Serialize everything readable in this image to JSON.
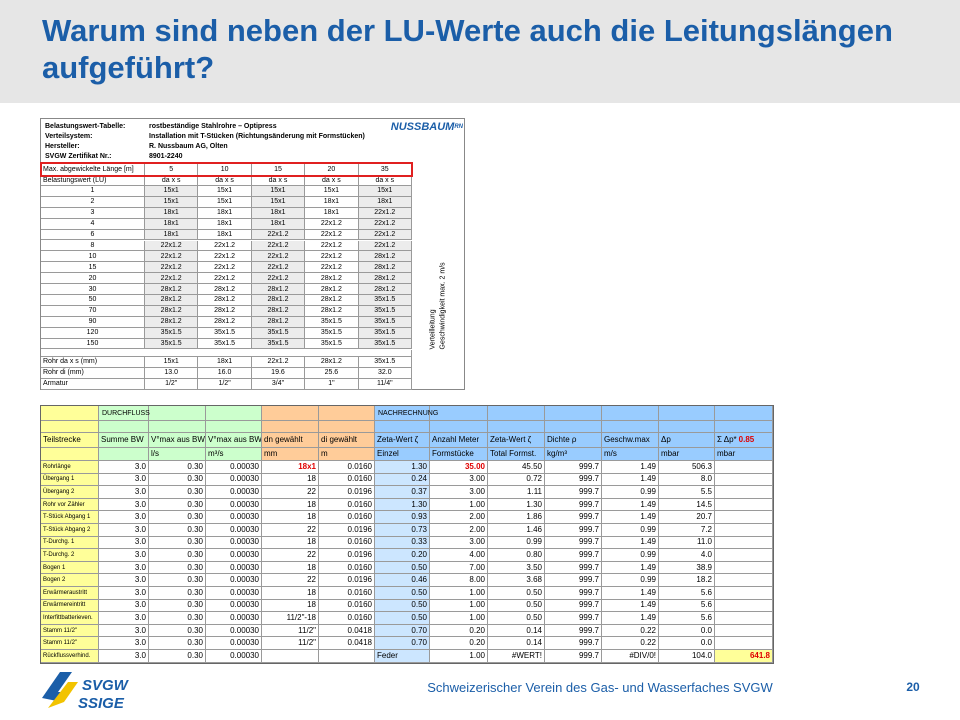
{
  "header": {
    "title": "Warum sind neben der LU-Werte auch die Leitungslängen aufgeführt?"
  },
  "table1": {
    "info": [
      [
        "Belastungswert-Tabelle:",
        "rostbeständige Stahlrohre – Optipress"
      ],
      [
        "Verteilsystem:",
        "Installation mit T-Stücken (Richtungsänderung mit Formstücken)"
      ],
      [
        "Hersteller:",
        "R. Nussbaum AG, Olten"
      ],
      [
        "SVGW Zertifikat Nr.:",
        "8901-2240"
      ]
    ],
    "logo": "NUSSBAUM",
    "logo_suffix": "RN",
    "length_label": "Max. abgewickelte Länge [m]",
    "lengths": [
      5,
      10,
      15,
      20,
      35
    ],
    "unit_label": "Belastungswert (LU)",
    "unit": "da x s",
    "rows": [
      {
        "lu": 1,
        "dims": [
          "15x1",
          "15x1",
          "15x1",
          "15x1",
          "15x1"
        ]
      },
      {
        "lu": 2,
        "dims": [
          "15x1",
          "15x1",
          "15x1",
          "18x1",
          "18x1"
        ]
      },
      {
        "lu": 3,
        "dims": [
          "18x1",
          "18x1",
          "18x1",
          "18x1",
          "22x1.2"
        ]
      },
      {
        "lu": 4,
        "dims": [
          "18x1",
          "18x1",
          "18x1",
          "22x1.2",
          "22x1.2"
        ]
      },
      {
        "lu": 6,
        "dims": [
          "18x1",
          "18x1",
          "22x1.2",
          "22x1.2",
          "22x1.2"
        ]
      },
      {
        "lu": 8,
        "dims": [
          "22x1.2",
          "22x1.2",
          "22x1.2",
          "22x1.2",
          "22x1.2"
        ]
      },
      {
        "lu": 10,
        "dims": [
          "22x1.2",
          "22x1.2",
          "22x1.2",
          "22x1.2",
          "28x1.2"
        ]
      },
      {
        "lu": 15,
        "dims": [
          "22x1.2",
          "22x1.2",
          "22x1.2",
          "22x1.2",
          "28x1.2"
        ]
      },
      {
        "lu": 20,
        "dims": [
          "22x1.2",
          "22x1.2",
          "22x1.2",
          "28x1.2",
          "28x1.2"
        ]
      },
      {
        "lu": 30,
        "dims": [
          "28x1.2",
          "28x1.2",
          "28x1.2",
          "28x1.2",
          "28x1.2"
        ]
      },
      {
        "lu": 50,
        "dims": [
          "28x1.2",
          "28x1.2",
          "28x1.2",
          "28x1.2",
          "35x1.5"
        ]
      },
      {
        "lu": 70,
        "dims": [
          "28x1.2",
          "28x1.2",
          "28x1.2",
          "28x1.2",
          "35x1.5"
        ]
      },
      {
        "lu": 90,
        "dims": [
          "28x1.2",
          "28x1.2",
          "28x1.2",
          "35x1.5",
          "35x1.5"
        ]
      },
      {
        "lu": 120,
        "dims": [
          "35x1.5",
          "35x1.5",
          "35x1.5",
          "35x1.5",
          "35x1.5"
        ]
      },
      {
        "lu": 150,
        "dims": [
          "35x1.5",
          "35x1.5",
          "35x1.5",
          "35x1.5",
          "35x1.5"
        ]
      }
    ],
    "side_text": [
      "Verteilleitung",
      "Geschwindigkeit max. 2 m/s"
    ],
    "footer": [
      {
        "label": "Rohr da x s (mm)",
        "values": [
          "15x1",
          "18x1",
          "22x1.2",
          "28x1.2",
          "35x1.5"
        ]
      },
      {
        "label": "Rohr di (mm)",
        "values": [
          "13.0",
          "16.0",
          "19.6",
          "25.6",
          "32.0"
        ]
      },
      {
        "label": "Armatur",
        "values": [
          "1/2\"",
          "1/2\"",
          "3/4\"",
          "1\"",
          "11/4\""
        ]
      }
    ]
  },
  "table2": {
    "groups": [
      "DURCHFLUSS",
      "NACHRECHNUNG"
    ],
    "columns": [
      "Teilstrecke",
      "Summe BW",
      "V°max aus BW",
      "V°max aus BW",
      "dn gewählt",
      "di gewählt",
      "Zeta-Wert ζ",
      "Anzahl Meter",
      "Zeta-Wert ζ",
      "Dichte ρ",
      "Geschw.max",
      "Δp",
      "Σ Δp*"
    ],
    "factor": "0.85",
    "units": [
      "l/s",
      "m³/s",
      "mm",
      "m",
      "Einzel",
      "Formstücke",
      "Total Formst.",
      "kg/m³",
      "m/s",
      "mbar",
      "mbar"
    ],
    "rows": [
      [
        "Rohrlänge",
        "3.0",
        "0.30",
        "0.00030",
        "18x1",
        "0.0160",
        "1.30",
        "35.00",
        "45.50",
        "999.7",
        "1.49",
        "506.3",
        null
      ],
      [
        "Übergang 1",
        "3.0",
        "0.30",
        "0.00030",
        "18",
        "0.0160",
        "0.24",
        "3.00",
        "0.72",
        "999.7",
        "1.49",
        "8.0",
        null
      ],
      [
        "Übergang 2",
        "3.0",
        "0.30",
        "0.00030",
        "22",
        "0.0196",
        "0.37",
        "3.00",
        "1.11",
        "999.7",
        "0.99",
        "5.5",
        null
      ],
      [
        "Rohr vor Zähler",
        "3.0",
        "0.30",
        "0.00030",
        "18",
        "0.0160",
        "1.30",
        "1.00",
        "1.30",
        "999.7",
        "1.49",
        "14.5",
        null
      ],
      [
        "T-Stück Abgang 1",
        "3.0",
        "0.30",
        "0.00030",
        "18",
        "0.0160",
        "0.93",
        "2.00",
        "1.86",
        "999.7",
        "1.49",
        "20.7",
        null
      ],
      [
        "T-Stück Abgang 2",
        "3.0",
        "0.30",
        "0.00030",
        "22",
        "0.0196",
        "0.73",
        "2.00",
        "1.46",
        "999.7",
        "0.99",
        "7.2",
        null
      ],
      [
        "T-Durchg. 1",
        "3.0",
        "0.30",
        "0.00030",
        "18",
        "0.0160",
        "0.33",
        "3.00",
        "0.99",
        "999.7",
        "1.49",
        "11.0",
        null
      ],
      [
        "T-Durchg. 2",
        "3.0",
        "0.30",
        "0.00030",
        "22",
        "0.0196",
        "0.20",
        "4.00",
        "0.80",
        "999.7",
        "0.99",
        "4.0",
        null
      ],
      [
        "Bogen 1",
        "3.0",
        "0.30",
        "0.00030",
        "18",
        "0.0160",
        "0.50",
        "7.00",
        "3.50",
        "999.7",
        "1.49",
        "38.9",
        null
      ],
      [
        "Bogen 2",
        "3.0",
        "0.30",
        "0.00030",
        "22",
        "0.0196",
        "0.46",
        "8.00",
        "3.68",
        "999.7",
        "0.99",
        "18.2",
        null
      ],
      [
        "Erwärmeraustritt",
        "3.0",
        "0.30",
        "0.00030",
        "18",
        "0.0160",
        "0.50",
        "1.00",
        "0.50",
        "999.7",
        "1.49",
        "5.6",
        null
      ],
      [
        "Erwärmereintritt",
        "3.0",
        "0.30",
        "0.00030",
        "18",
        "0.0160",
        "0.50",
        "1.00",
        "0.50",
        "999.7",
        "1.49",
        "5.6",
        null
      ],
      [
        "Interfittbatterieven.",
        "3.0",
        "0.30",
        "0.00030",
        "11/2\"-18",
        "0.0160",
        "0.50",
        "1.00",
        "0.50",
        "999.7",
        "1.49",
        "5.6",
        null
      ],
      [
        "Stamm 11/2\"",
        "3.0",
        "0.30",
        "0.00030",
        "11/2\"",
        "0.0418",
        "0.70",
        "0.20",
        "0.14",
        "999.7",
        "0.22",
        "0.0",
        null
      ],
      [
        "Stamm 11/2\"",
        "3.0",
        "0.30",
        "0.00030",
        "11/2\"",
        "0.0418",
        "0.70",
        "0.20",
        "0.14",
        "999.7",
        "0.22",
        "0.0",
        null
      ],
      [
        "Rückflussverhind.",
        "3.0",
        "0.30",
        "0.00030",
        null,
        null,
        "Feder",
        "1.00",
        "#WERT!",
        "999.7",
        "#DIV/0!",
        "104.0",
        "641.8"
      ]
    ]
  },
  "footer": {
    "text": "Schweizerischer Verein des Gas- und Wasserfaches SVGW",
    "page": "20",
    "logo": [
      "SVGW",
      "SSIGE"
    ]
  }
}
